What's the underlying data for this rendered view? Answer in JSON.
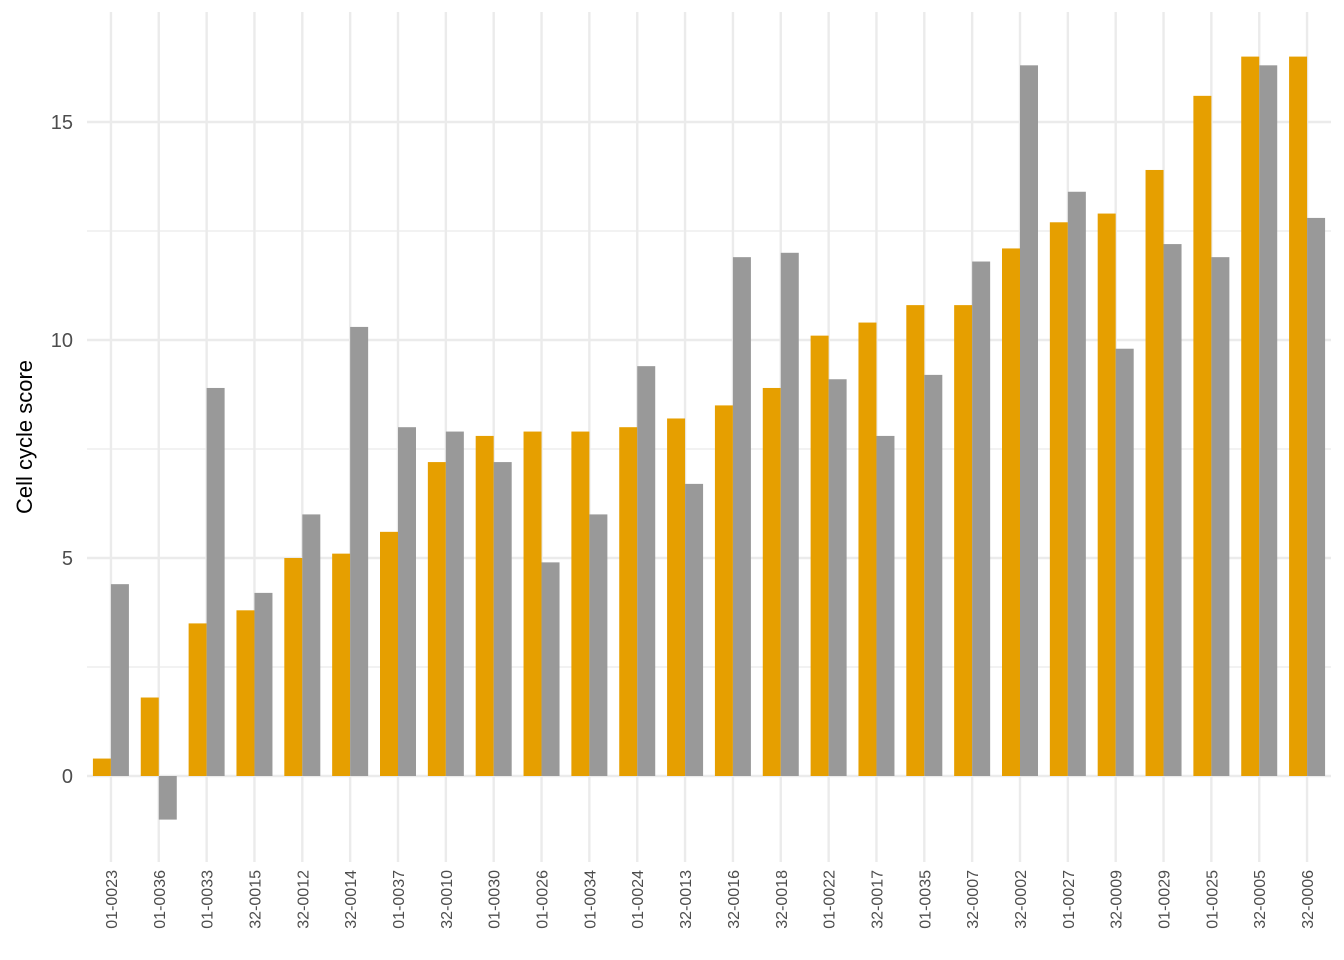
{
  "chart_data": {
    "type": "bar",
    "ylabel": "Cell cycle score",
    "xlabel": "",
    "ylim": [
      -2.0,
      17.3
    ],
    "yticks": [
      0,
      5,
      10,
      15
    ],
    "y_minor_ticks": [
      2.5,
      7.5,
      12.5
    ],
    "grid": true,
    "legend": "none",
    "categories": [
      "01-0023",
      "01-0036",
      "01-0033",
      "32-0015",
      "32-0012",
      "32-0014",
      "01-0037",
      "32-0010",
      "01-0030",
      "01-0026",
      "01-0034",
      "01-0024",
      "32-0013",
      "32-0016",
      "32-0018",
      "01-0022",
      "32-0017",
      "01-0035",
      "32-0007",
      "32-0002",
      "01-0027",
      "32-0009",
      "01-0029",
      "01-0025",
      "32-0005",
      "32-0006"
    ],
    "series": [
      {
        "color": "#E69F00",
        "values": [
          0.4,
          1.8,
          3.5,
          3.8,
          5.0,
          5.1,
          5.6,
          7.2,
          7.8,
          7.9,
          7.9,
          8.0,
          8.2,
          8.5,
          8.9,
          10.1,
          10.4,
          10.8,
          10.8,
          12.1,
          12.7,
          12.9,
          13.9,
          15.6,
          16.5,
          16.5
        ]
      },
      {
        "color": "#999999",
        "values": [
          4.4,
          -1.0,
          8.9,
          4.2,
          6.0,
          10.3,
          8.0,
          7.9,
          7.2,
          4.9,
          6.0,
          9.4,
          6.7,
          11.9,
          12.0,
          9.1,
          7.8,
          9.2,
          11.8,
          16.3,
          13.4,
          9.8,
          12.2,
          11.9,
          16.3,
          12.8
        ]
      }
    ]
  }
}
